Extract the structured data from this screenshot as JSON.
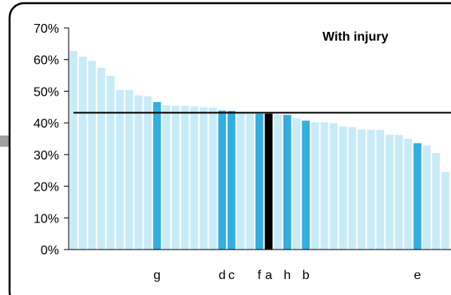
{
  "chart_data": {
    "type": "bar",
    "title": "With injury",
    "xlabel": "",
    "ylabel": "",
    "ylim": [
      0,
      70
    ],
    "yticks": [
      "0%",
      "10%",
      "20%",
      "30%",
      "40%",
      "50%",
      "60%",
      "70%"
    ],
    "grid": false,
    "reference_line": 43.2,
    "values": [
      62.7,
      60.9,
      59.6,
      57.4,
      54.9,
      50.4,
      50.4,
      48.7,
      48.4,
      46.6,
      45.6,
      45.4,
      45.4,
      45.2,
      45.0,
      44.8,
      43.9,
      43.8,
      43.2,
      43.0,
      42.9,
      42.9,
      42.6,
      42.5,
      41.5,
      40.7,
      40.2,
      40.2,
      39.9,
      38.9,
      38.7,
      37.9,
      37.8,
      37.8,
      36.3,
      36.2,
      35.0,
      33.6,
      32.8,
      30.5,
      24.5
    ],
    "labeled_bars": [
      {
        "index": 9,
        "label": "g"
      },
      {
        "index": 16,
        "label": "d"
      },
      {
        "index": 17,
        "label": "c"
      },
      {
        "index": 20,
        "label": "f"
      },
      {
        "index": 21,
        "label": "a"
      },
      {
        "index": 23,
        "label": "h"
      },
      {
        "index": 25,
        "label": "b"
      },
      {
        "index": 37,
        "label": "e"
      }
    ],
    "highlighted_indices": [
      9,
      16,
      17,
      20,
      23,
      25,
      37
    ],
    "black_index": 21,
    "colors": {
      "bar": "#c8ebf8",
      "highlight": "#33aee0",
      "black": "#000000",
      "frame": "#000000",
      "side_tab": "#a0a0a0"
    }
  }
}
